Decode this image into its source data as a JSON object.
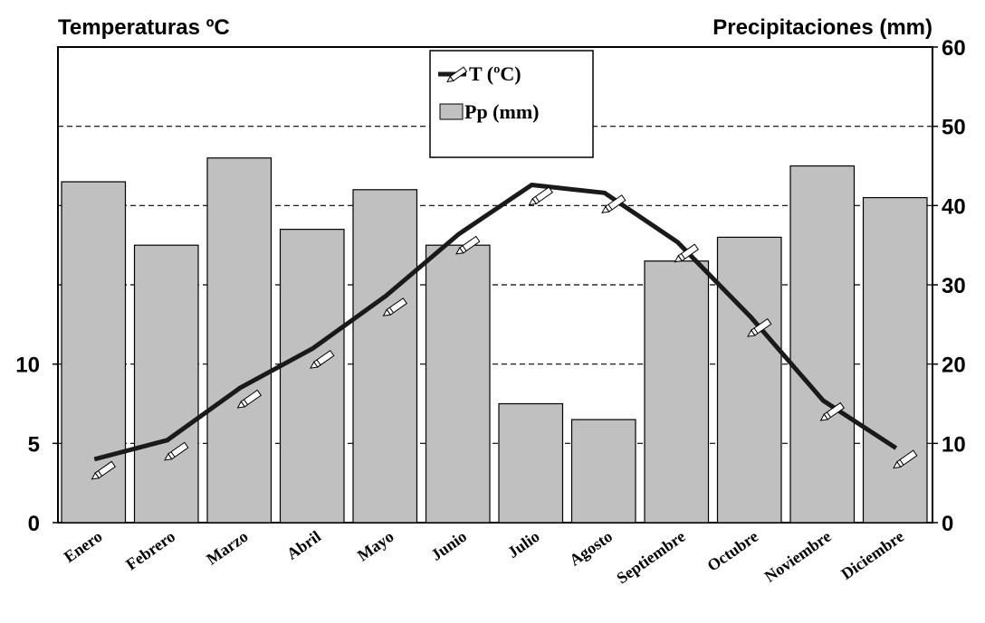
{
  "chart_data": {
    "type": "bar",
    "left_axis_title": "Temperaturas ºC",
    "right_axis_title": "Precipitaciones (mm)",
    "categories": [
      "Enero",
      "Febrero",
      "Marzo",
      "Abril",
      "Mayo",
      "Junio",
      "Julio",
      "Agosto",
      "Septiembre",
      "Octubre",
      "Noviembre",
      "Diciembre"
    ],
    "series": [
      {
        "name": "Pp (mm)",
        "type": "bar",
        "axis": "right",
        "color": "#c0c0c0",
        "values": [
          43,
          35,
          46,
          37,
          42,
          35,
          15,
          13,
          33,
          36,
          45,
          41
        ]
      },
      {
        "name": "T (ºC)",
        "type": "line",
        "axis": "left",
        "color": "#1a1a1a",
        "values": [
          4,
          5.2,
          8.5,
          11,
          14.3,
          18.2,
          21.3,
          20.8,
          17.7,
          13,
          7.7,
          4.7
        ]
      }
    ],
    "left_axis": {
      "ylim": [
        0,
        30
      ],
      "ticks": [
        "0",
        "5",
        "10"
      ]
    },
    "right_axis": {
      "ylim": [
        0,
        60
      ],
      "ticks": [
        "0",
        "10",
        "20",
        "30",
        "40",
        "50",
        "60"
      ]
    },
    "grid": "dashed horizontal",
    "legend_position": "top-center"
  }
}
